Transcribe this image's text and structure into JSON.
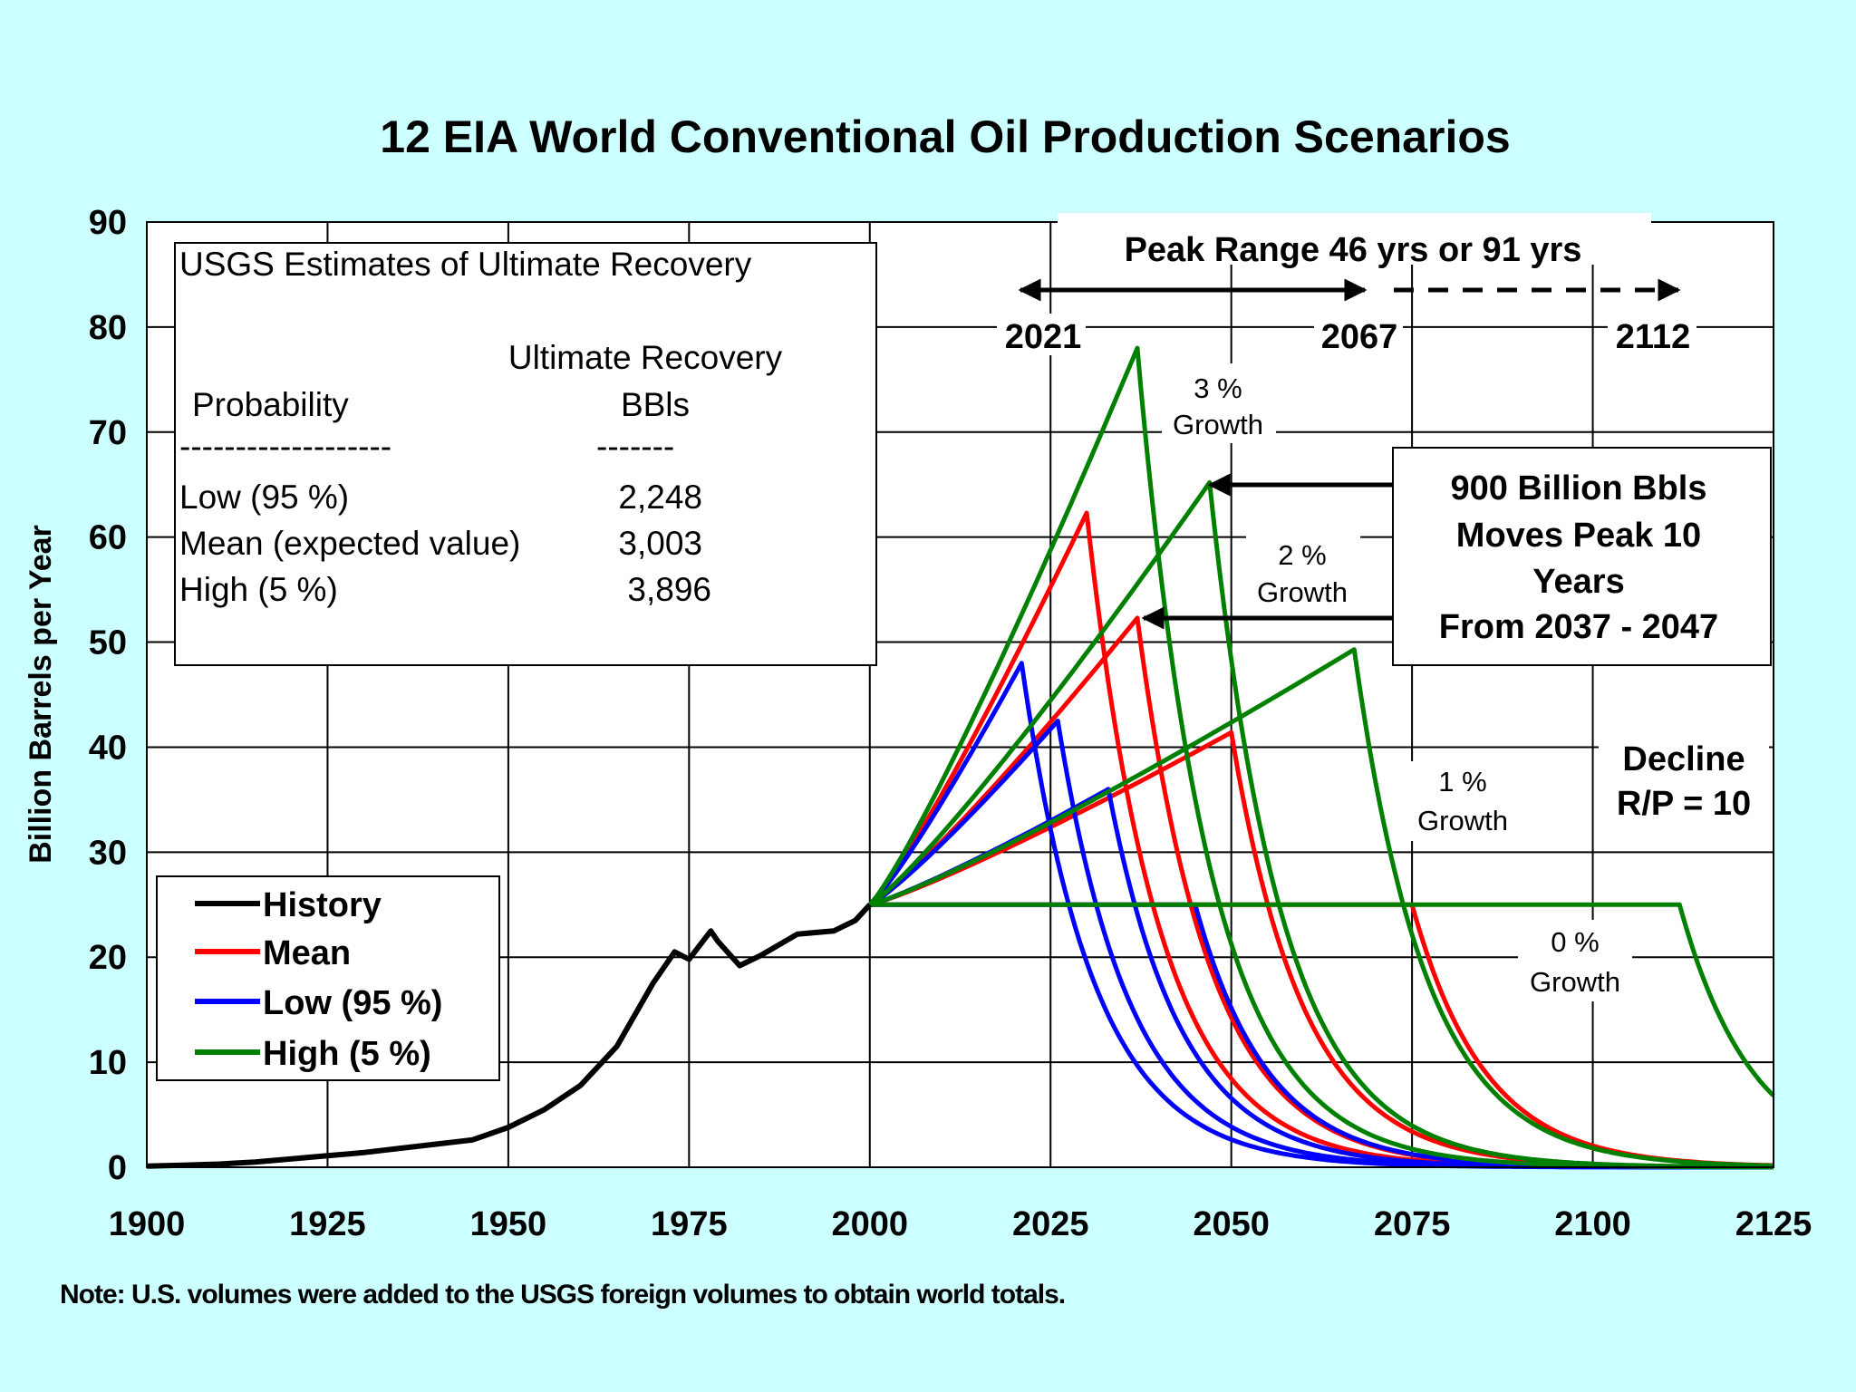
{
  "chart_data": {
    "type": "line",
    "title": "12 EIA World Conventional Oil Production Scenarios",
    "ylabel": "Billion Barrels per Year",
    "xlabel": "",
    "xlim": [
      1900,
      2125
    ],
    "ylim": [
      0,
      90
    ],
    "x_ticks": [
      "1900",
      "1925",
      "1950",
      "1975",
      "2000",
      "2025",
      "2050",
      "2075",
      "2100",
      "2125"
    ],
    "y_ticks": [
      "0",
      "10",
      "20",
      "30",
      "40",
      "50",
      "60",
      "70",
      "80",
      "90"
    ],
    "grid": true,
    "colors": {
      "history": "#000000",
      "mean": "#ff0000",
      "low": "#0000ff",
      "high": "#008000",
      "background": "#ccffff"
    },
    "legend": {
      "position": "bottom-left",
      "entries": [
        {
          "label": "History",
          "key": "history"
        },
        {
          "label": "Mean",
          "key": "mean"
        },
        {
          "label": "Low (95 %)",
          "key": "low"
        },
        {
          "label": "High (5 %)",
          "key": "high"
        }
      ]
    },
    "history": {
      "name": "History",
      "x": [
        1900,
        1905,
        1910,
        1915,
        1920,
        1925,
        1930,
        1935,
        1940,
        1945,
        1950,
        1955,
        1960,
        1965,
        1970,
        1973,
        1975,
        1978,
        1979,
        1982,
        1985,
        1990,
        1995,
        1998,
        2000
      ],
      "y": [
        0.1,
        0.2,
        0.3,
        0.5,
        0.8,
        1.1,
        1.4,
        1.8,
        2.2,
        2.6,
        3.8,
        5.5,
        7.8,
        11.5,
        17.5,
        20.5,
        19.8,
        22.5,
        21.5,
        19.2,
        20.2,
        22.2,
        22.5,
        23.5,
        25
      ]
    },
    "decline_rp": 10,
    "scenarios": [
      {
        "name": "Mean 0% Growth",
        "key": "mean",
        "peak_year": 2075,
        "peak": 25,
        "growth": 0
      },
      {
        "name": "Mean 1% Growth",
        "key": "mean",
        "peak_year": 2050,
        "peak": 41.4,
        "growth": 1
      },
      {
        "name": "Mean 2% Growth",
        "key": "mean",
        "peak_year": 2037,
        "peak": 52.3,
        "growth": 2
      },
      {
        "name": "Mean 3% Growth",
        "key": "mean",
        "peak_year": 2030,
        "peak": 62.3,
        "growth": 3
      },
      {
        "name": "Low 0% Growth",
        "key": "low",
        "peak_year": 2045,
        "peak": 25,
        "growth": 0
      },
      {
        "name": "Low 1% Growth",
        "key": "low",
        "peak_year": 2033,
        "peak": 36,
        "growth": 1
      },
      {
        "name": "Low 2% Growth",
        "key": "low",
        "peak_year": 2026,
        "peak": 42.5,
        "growth": 2
      },
      {
        "name": "Low 3% Growth",
        "key": "low",
        "peak_year": 2021,
        "peak": 48,
        "growth": 3
      },
      {
        "name": "High 0% Growth",
        "key": "high",
        "peak_year": 2112,
        "peak": 25,
        "growth": 0
      },
      {
        "name": "High 1% Growth",
        "key": "high",
        "peak_year": 2067,
        "peak": 49.3,
        "growth": 1
      },
      {
        "name": "High 2% Growth",
        "key": "high",
        "peak_year": 2047,
        "peak": 65.2,
        "growth": 2
      },
      {
        "name": "High 3% Growth",
        "key": "high",
        "peak_year": 2037,
        "peak": 78,
        "growth": 3
      }
    ],
    "recovery_box": {
      "title": "USGS Estimates of Ultimate Recovery",
      "col1_header": "Probability",
      "col2_header_line1": "Ultimate Recovery",
      "col2_header_line2": "BBls",
      "col1_rule": "-------------------",
      "col2_rule": "-------",
      "rows": [
        {
          "label": "Low (95 %)",
          "value": "2,248"
        },
        {
          "label": "Mean (expected value)",
          "value": "3,003"
        },
        {
          "label": "High (5 %)",
          "value": "3,896"
        }
      ]
    },
    "peak_range": {
      "label": "Peak Range 46 yrs or 91 yrs",
      "years": [
        "2021",
        "2067",
        "2112"
      ],
      "year_values": [
        2021,
        2067,
        2112
      ]
    },
    "annotations": {
      "growth3": [
        "3 %",
        "Growth"
      ],
      "growth2": [
        "2 %",
        "Growth"
      ],
      "growth1": [
        "1 %",
        "Growth"
      ],
      "growth0": [
        "0 %",
        "Growth"
      ],
      "decline": [
        "Decline",
        "R/P = 10"
      ],
      "callout": [
        "900 Billion Bbls",
        "Moves Peak 10",
        "Years",
        "From 2037 - 2047"
      ],
      "callout_targets": [
        {
          "x": 2047,
          "y": 65
        },
        {
          "x": 2037,
          "y": 52
        }
      ]
    },
    "note": "Note: U.S. volumes were added to the USGS foreign volumes to obtain world totals."
  }
}
